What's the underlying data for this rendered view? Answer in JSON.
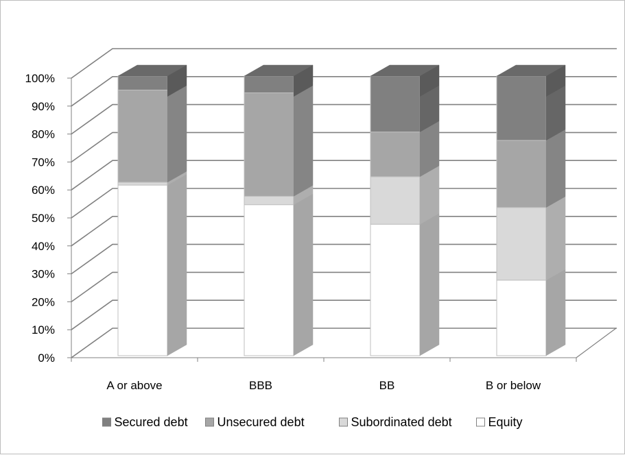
{
  "chart_data": {
    "type": "bar",
    "stacked": true,
    "stacked_percent": true,
    "three_d": true,
    "categories": [
      "A or above",
      "BBB",
      "BB",
      "B or below"
    ],
    "series": [
      {
        "name": "Equity",
        "values": [
          61,
          54,
          47,
          27
        ],
        "color": "#ffffff"
      },
      {
        "name": "Subordinated debt",
        "values": [
          1,
          3,
          17,
          26
        ],
        "color": "#d9d9d9"
      },
      {
        "name": "Unsecured debt",
        "values": [
          33,
          37,
          16,
          24
        ],
        "color": "#a6a6a6"
      },
      {
        "name": "Secured debt",
        "values": [
          5,
          6,
          20,
          23
        ],
        "color": "#808080"
      }
    ],
    "legend_order": [
      "Secured debt",
      "Unsecured debt",
      "Subordinated debt",
      "Equity"
    ],
    "y_ticks": [
      "0%",
      "10%",
      "20%",
      "30%",
      "40%",
      "50%",
      "60%",
      "70%",
      "80%",
      "90%",
      "100%"
    ],
    "ylim": [
      0,
      100
    ],
    "grid": true,
    "legend_position": "bottom",
    "title": "",
    "xlabel": "",
    "ylabel": ""
  }
}
